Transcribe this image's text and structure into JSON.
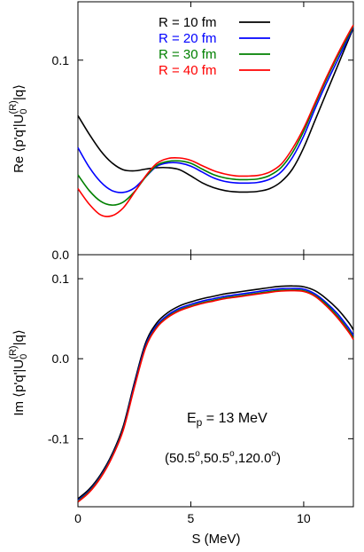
{
  "chart_data": [
    {
      "type": "line",
      "panel": "top",
      "ylabel_prefix": "Re",
      "ylabel_expr": "⟨p'q'|U",
      "ylabel_sub": "0",
      "ylabel_sup": "(R)",
      "ylabel_suffix": "|q⟩",
      "xlim": [
        0,
        12.2
      ],
      "ylim": [
        0.0,
        0.13
      ],
      "yticks": [
        0.0,
        0.1
      ],
      "ytick_labels": [
        "0.0",
        "0.1"
      ],
      "legend": "top-center",
      "series": [
        {
          "name": "R = 10 fm",
          "color": "#000000",
          "x": [
            0,
            0.5,
            1,
            1.5,
            2,
            2.5,
            3,
            3.5,
            4,
            4.5,
            5,
            5.5,
            6,
            6.5,
            7,
            7.5,
            8,
            8.5,
            9,
            9.5,
            10,
            10.5,
            11,
            11.5,
            12,
            12.2
          ],
          "y": [
            0.0715,
            0.062,
            0.0535,
            0.0473,
            0.0437,
            0.0431,
            0.044,
            0.0447,
            0.0447,
            0.0437,
            0.0405,
            0.037,
            0.0345,
            0.033,
            0.0323,
            0.0322,
            0.0326,
            0.034,
            0.0375,
            0.044,
            0.055,
            0.069,
            0.083,
            0.097,
            0.111,
            0.1165
          ]
        },
        {
          "name": "R = 20 fm",
          "color": "#0000ff",
          "x": [
            0,
            0.5,
            1,
            1.5,
            2,
            2.5,
            3,
            3.5,
            4,
            4.5,
            5,
            5.5,
            6,
            6.5,
            7,
            7.5,
            8,
            8.5,
            9,
            9.5,
            10,
            10.5,
            11,
            11.5,
            12,
            12.2
          ],
          "y": [
            0.055,
            0.045,
            0.0375,
            0.033,
            0.032,
            0.0343,
            0.04,
            0.0455,
            0.0472,
            0.0471,
            0.0455,
            0.0425,
            0.0395,
            0.0377,
            0.0369,
            0.0368,
            0.0372,
            0.0388,
            0.0425,
            0.05,
            0.061,
            0.075,
            0.088,
            0.1,
            0.112,
            0.117
          ]
        },
        {
          "name": "R = 30 fm",
          "color": "#008000",
          "x": [
            0,
            0.5,
            1,
            1.5,
            2,
            2.5,
            3,
            3.5,
            4,
            4.5,
            5,
            5.5,
            6,
            6.5,
            7,
            7.5,
            8,
            8.5,
            9,
            9.5,
            10,
            10.5,
            11,
            11.5,
            12,
            12.2
          ],
          "y": [
            0.041,
            0.033,
            0.0275,
            0.0255,
            0.027,
            0.0323,
            0.04,
            0.046,
            0.048,
            0.0482,
            0.047,
            0.044,
            0.0412,
            0.0395,
            0.0387,
            0.0386,
            0.039,
            0.0408,
            0.0448,
            0.0525,
            0.0635,
            0.077,
            0.09,
            0.102,
            0.113,
            0.1175
          ]
        },
        {
          "name": "R = 40 fm",
          "color": "#ff0000",
          "x": [
            0,
            0.5,
            1,
            1.5,
            2,
            2.5,
            3,
            3.5,
            4,
            4.5,
            5,
            5.5,
            6,
            6.5,
            7,
            7.5,
            8,
            8.5,
            9,
            9.5,
            10,
            10.5,
            11,
            11.5,
            12,
            12.2
          ],
          "y": [
            0.034,
            0.026,
            0.0205,
            0.02,
            0.024,
            0.032,
            0.0405,
            0.047,
            0.0495,
            0.0497,
            0.0485,
            0.0458,
            0.0432,
            0.0415,
            0.0405,
            0.0404,
            0.0408,
            0.0425,
            0.0465,
            0.0545,
            0.065,
            0.078,
            0.091,
            0.103,
            0.114,
            0.118
          ]
        }
      ]
    },
    {
      "type": "line",
      "panel": "bottom",
      "ylabel_prefix": "Im",
      "ylabel_expr": "⟨p'q'|U",
      "ylabel_sub": "0",
      "ylabel_sup": "(R)",
      "ylabel_suffix": "|q⟩",
      "xlabel": "S  (MeV)",
      "xlim": [
        0,
        12.2
      ],
      "ylim": [
        -0.185,
        0.13
      ],
      "xticks": [
        0,
        5,
        10
      ],
      "xtick_labels": [
        "0",
        "5",
        "10"
      ],
      "yticks": [
        -0.1,
        0.0,
        0.1
      ],
      "ytick_labels": [
        "-0.1",
        "0.0",
        "0.1"
      ],
      "annotations": {
        "energy_prefix": "E",
        "energy_sub": "p",
        "energy_rest": " = 13 MeV",
        "angles": [
          "50.5",
          "50.5",
          "120.0"
        ],
        "angle_unit": "o"
      },
      "series": [
        {
          "name": "R = 10 fm",
          "color": "#000000",
          "x": [
            0,
            0.5,
            1,
            1.5,
            2,
            2.5,
            3,
            3.5,
            4,
            4.5,
            5,
            5.5,
            6,
            6.5,
            7,
            7.5,
            8,
            8.5,
            9,
            9.5,
            10,
            10.5,
            11,
            11.5,
            12,
            12.2
          ],
          "y": [
            -0.175,
            -0.163,
            -0.145,
            -0.12,
            -0.085,
            -0.03,
            0.02,
            0.045,
            0.058,
            0.066,
            0.071,
            0.075,
            0.078,
            0.081,
            0.083,
            0.085,
            0.087,
            0.089,
            0.0905,
            0.091,
            0.09,
            0.085,
            0.075,
            0.062,
            0.045,
            0.036
          ]
        },
        {
          "name": "R = 20 fm",
          "color": "#0000ff",
          "x": [
            0,
            0.5,
            1,
            1.5,
            2,
            2.5,
            3,
            3.5,
            4,
            4.5,
            5,
            5.5,
            6,
            6.5,
            7,
            7.5,
            8,
            8.5,
            9,
            9.5,
            10,
            10.5,
            11,
            11.5,
            12,
            12.2
          ],
          "y": [
            -0.177,
            -0.165,
            -0.147,
            -0.122,
            -0.088,
            -0.033,
            0.017,
            0.042,
            0.055,
            0.063,
            0.068,
            0.072,
            0.075,
            0.078,
            0.08,
            0.082,
            0.084,
            0.086,
            0.0875,
            0.088,
            0.087,
            0.081,
            0.07,
            0.056,
            0.038,
            0.029
          ]
        },
        {
          "name": "R = 30 fm",
          "color": "#008000",
          "x": [
            0,
            0.5,
            1,
            1.5,
            2,
            2.5,
            3,
            3.5,
            4,
            4.5,
            5,
            5.5,
            6,
            6.5,
            7,
            7.5,
            8,
            8.5,
            9,
            9.5,
            10,
            10.5,
            11,
            11.5,
            12,
            12.2
          ],
          "y": [
            -0.178,
            -0.166,
            -0.148,
            -0.123,
            -0.089,
            -0.035,
            0.015,
            0.04,
            0.053,
            0.061,
            0.066,
            0.07,
            0.073,
            0.076,
            0.078,
            0.08,
            0.082,
            0.084,
            0.0855,
            0.086,
            0.085,
            0.079,
            0.068,
            0.053,
            0.035,
            0.026
          ]
        },
        {
          "name": "R = 40 fm",
          "color": "#ff0000",
          "x": [
            0,
            0.5,
            1,
            1.5,
            2,
            2.5,
            3,
            3.5,
            4,
            4.5,
            5,
            5.5,
            6,
            6.5,
            7,
            7.5,
            8,
            8.5,
            9,
            9.5,
            10,
            10.5,
            11,
            11.5,
            12,
            12.2
          ],
          "y": [
            -0.179,
            -0.167,
            -0.149,
            -0.124,
            -0.09,
            -0.036,
            0.014,
            0.039,
            0.052,
            0.06,
            0.065,
            0.069,
            0.072,
            0.075,
            0.077,
            0.079,
            0.081,
            0.083,
            0.0845,
            0.085,
            0.084,
            0.078,
            0.066,
            0.051,
            0.033,
            0.024
          ]
        }
      ]
    }
  ]
}
